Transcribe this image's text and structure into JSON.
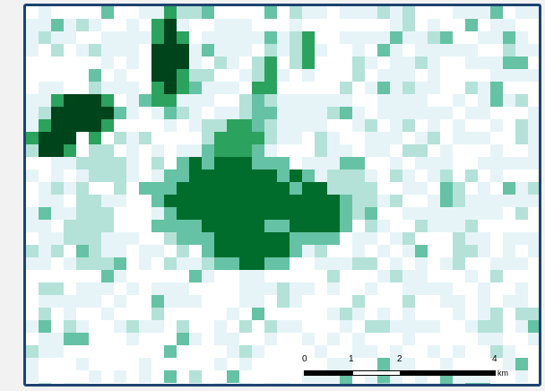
{
  "map": {
    "colors": {
      "background": "#ffffff",
      "frame": "#1d4370",
      "class_1": "#e6f4f8",
      "class_2": "#b4e2d8",
      "class_3": "#66c2a4",
      "class_4": "#2ca25f",
      "class_5": "#006d2c",
      "class_6": "#00441b"
    }
  },
  "scale_bar": {
    "ticks": [
      "0",
      "1",
      "2",
      "4"
    ],
    "unit": "km"
  }
}
